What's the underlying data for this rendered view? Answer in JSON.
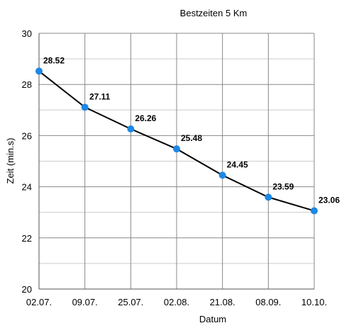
{
  "chart_data": {
    "type": "line",
    "title": "Bestzeiten 5 Km",
    "xlabel": "Datum",
    "ylabel": "Zeit (min.s)",
    "categories": [
      "02.07.",
      "09.07.",
      "25.07.",
      "02.08.",
      "21.08.",
      "08.09.",
      "10.10."
    ],
    "values": [
      28.52,
      27.11,
      26.26,
      25.48,
      24.45,
      23.59,
      23.06
    ],
    "data_labels": [
      "28.52",
      "27.11",
      "26.26",
      "25.48",
      "24.45",
      "23.59",
      "23.06"
    ],
    "ylim": [
      20,
      30
    ],
    "yticks": [
      "20",
      "22",
      "24",
      "26",
      "28",
      "30"
    ],
    "grid": true,
    "legend": "none",
    "colors": {
      "line": "#000000",
      "marker": "#1e88e5",
      "major_grid": "#888888",
      "minor_grid": "#cccccc"
    }
  }
}
